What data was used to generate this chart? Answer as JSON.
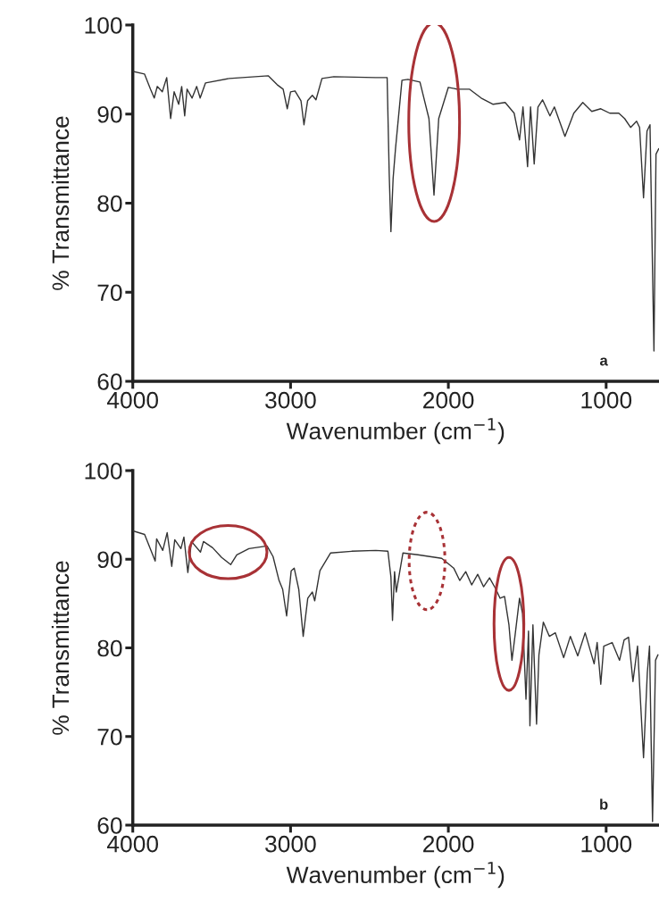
{
  "chart_data": [
    {
      "type": "line",
      "xlabel": "Wavenumber (cm$^{−1}$)",
      "ylabel": "% Transmittance",
      "annotations": [
        "a"
      ],
      "xlim": [
        4000,
        665
      ],
      "ylim": [
        60,
        100
      ],
      "xticks": [
        4000,
        3000,
        2000,
        1000
      ],
      "yticks": [
        60,
        70,
        80,
        90,
        100
      ],
      "series": [
        {
          "color": "#333333",
          "x": [
            4000,
            3926,
            3888,
            3864,
            3845,
            3813,
            3785,
            3760,
            3738,
            3709,
            3690,
            3671,
            3656,
            3624,
            3595,
            3573,
            3539,
            3388,
            3142,
            3085,
            3047,
            3021,
            3000,
            2972,
            2934,
            2915,
            2892,
            2862,
            2839,
            2801,
            2726,
            2461,
            2388,
            2375,
            2364,
            2350,
            2335,
            2294,
            2256,
            2180,
            2123,
            2091,
            2061,
            2000,
            1943,
            1867,
            1792,
            1716,
            1640,
            1583,
            1549,
            1527,
            1498,
            1479,
            1456,
            1432,
            1403,
            1356,
            1328,
            1261,
            1205,
            1148,
            1091,
            1034,
            977,
            920,
            883,
            845,
            807,
            788,
            763,
            741,
            722,
            697,
            684,
            667
          ],
          "values": [
            94.8,
            94.5,
            92.8,
            91.8,
            93.1,
            92.5,
            94.1,
            89.5,
            92.5,
            91.1,
            93.1,
            89.8,
            92.8,
            91.8,
            93.1,
            91.8,
            93.5,
            94.0,
            94.3,
            93.3,
            92.8,
            90.6,
            92.5,
            92.6,
            91.5,
            88.8,
            91.5,
            92.1,
            91.6,
            94.0,
            94.2,
            94.1,
            94.1,
            83.4,
            76.8,
            82.8,
            86.1,
            93.8,
            93.9,
            93.6,
            89.5,
            80.9,
            89.5,
            93.0,
            92.8,
            92.8,
            91.8,
            91.1,
            91.3,
            90.1,
            87.1,
            90.8,
            84.1,
            90.8,
            84.4,
            90.8,
            91.6,
            89.8,
            90.8,
            87.5,
            90.1,
            91.3,
            90.3,
            90.6,
            90.1,
            90.1,
            89.5,
            88.5,
            89.2,
            88.5,
            80.6,
            88.1,
            88.8,
            63.4,
            85.5,
            86.1
          ]
        }
      ]
    },
    {
      "type": "line",
      "xlabel": "Wavenumber (cm$^{−1}$)",
      "ylabel": "% Transmittance",
      "annotations": [
        "b"
      ],
      "xlim": [
        4000,
        665
      ],
      "ylim": [
        60,
        100
      ],
      "xticks": [
        4000,
        3000,
        2000,
        1000
      ],
      "yticks": [
        60,
        70,
        80,
        90,
        100
      ],
      "series": [
        {
          "color": "#333333",
          "x": [
            4000,
            3925,
            3858,
            3849,
            3810,
            3782,
            3753,
            3734,
            3695,
            3676,
            3651,
            3628,
            3571,
            3552,
            3494,
            3437,
            3379,
            3341,
            3264,
            3149,
            3111,
            3073,
            3050,
            3025,
            2996,
            2977,
            2948,
            2920,
            2891,
            2862,
            2847,
            2814,
            2747,
            2613,
            2460,
            2383,
            2364,
            2354,
            2341,
            2330,
            2288,
            2193,
            2042,
            1966,
            1928,
            1890,
            1852,
            1814,
            1777,
            1739,
            1701,
            1672,
            1644,
            1616,
            1597,
            1578,
            1549,
            1530,
            1508,
            1492,
            1483,
            1464,
            1441,
            1426,
            1398,
            1360,
            1322,
            1269,
            1227,
            1180,
            1133,
            1076,
            1057,
            1034,
            1015,
            962,
            915,
            886,
            858,
            830,
            801,
            763,
            739,
            725,
            706,
            687,
            672
          ],
          "values": [
            93.2,
            92.8,
            89.8,
            92.3,
            91.0,
            93.0,
            89.2,
            92.2,
            91.2,
            92.5,
            88.5,
            92.0,
            90.8,
            92.0,
            91.3,
            90.2,
            89.4,
            90.5,
            91.2,
            91.5,
            90.3,
            87.6,
            86.6,
            83.6,
            88.7,
            89.0,
            86.6,
            81.3,
            85.6,
            86.3,
            85.3,
            88.7,
            90.7,
            90.9,
            91.0,
            90.9,
            88.0,
            83.1,
            88.6,
            86.3,
            90.7,
            90.5,
            90.1,
            89.0,
            87.6,
            88.6,
            87.1,
            88.3,
            86.9,
            87.9,
            86.7,
            85.6,
            85.8,
            82.6,
            78.6,
            81.3,
            85.6,
            83.9,
            74.2,
            81.9,
            71.2,
            82.6,
            71.4,
            79.2,
            82.9,
            81.3,
            81.7,
            78.9,
            81.3,
            79.1,
            81.7,
            78.2,
            80.6,
            75.9,
            80.2,
            80.6,
            78.6,
            80.9,
            81.2,
            76.2,
            80.2,
            67.6,
            77.2,
            80.2,
            60.4,
            78.6,
            79.2
          ]
        }
      ]
    }
  ]
}
